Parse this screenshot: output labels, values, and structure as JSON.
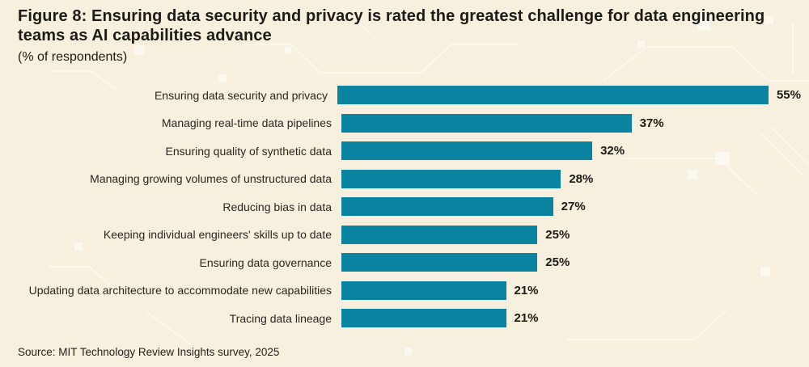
{
  "chart_data": {
    "type": "bar",
    "orientation": "horizontal",
    "title": "Figure 8: Ensuring data security and privacy is rated the greatest challenge for data engineering teams as AI capabilities advance",
    "subtitle": "(% of respondents)",
    "source": "Source: MIT Technology Review Insights survey, 2025",
    "categories": [
      "Ensuring data security and privacy",
      "Managing real-time data pipelines",
      "Ensuring quality of synthetic data",
      "Managing growing volumes of unstructured data",
      "Reducing bias in data",
      "Keeping individual engineers' skills up to date",
      "Ensuring data governance",
      "Updating data architecture to accommodate new capabilities",
      "Tracing data lineage"
    ],
    "values": [
      55,
      37,
      32,
      28,
      27,
      25,
      25,
      21,
      21
    ],
    "value_labels": [
      "55%",
      "37%",
      "32%",
      "28%",
      "27%",
      "25%",
      "25%",
      "21%",
      "21%"
    ],
    "xlim": [
      0,
      55
    ],
    "grid": false,
    "legend": false,
    "axis_ticks": false,
    "bar_color": "#0a84a1",
    "background_color": "#f7f0de",
    "text_color": "#1d1b17"
  }
}
